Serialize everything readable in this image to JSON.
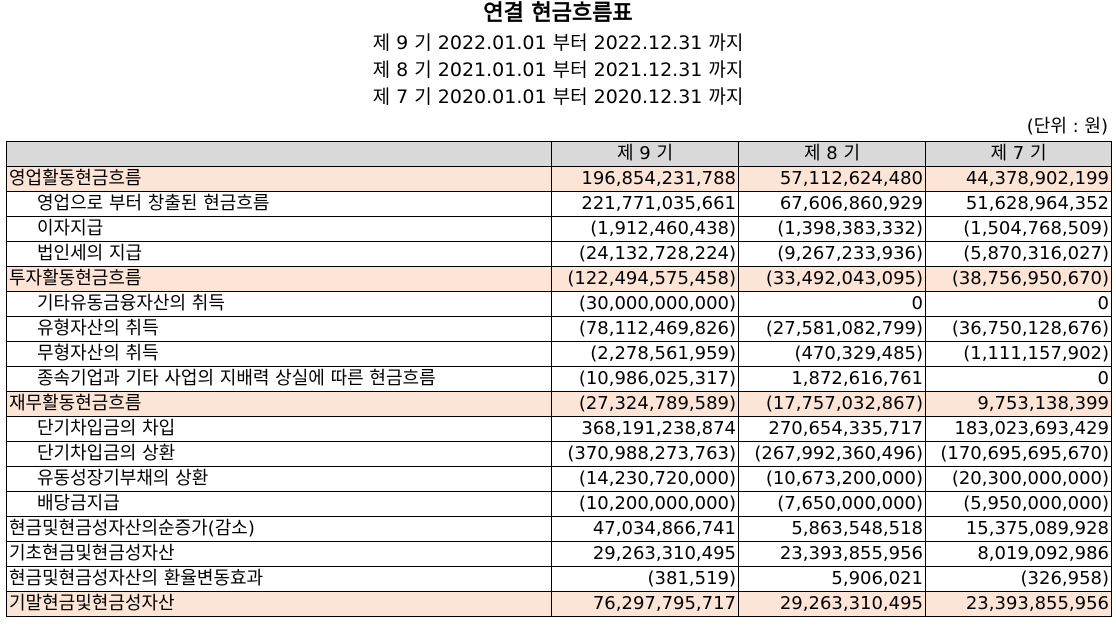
{
  "title": "연결 현금흐름표",
  "periods": [
    "제 9 기 2022.01.01 부터 2022.12.31 까지",
    "제 8 기 2021.01.01 부터 2021.12.31 까지",
    "제 7 기 2020.01.01 부터 2020.12.31 까지"
  ],
  "unit": "(단위 : 원)",
  "headers": [
    "",
    "제 9 기",
    "제 8 기",
    "제 7 기"
  ],
  "rows": [
    {
      "label": "영업활동현금흐름",
      "v9": "196,854,231,788",
      "v8": "57,112,624,480",
      "v7": "44,378,902,199"
    },
    {
      "label": "영업으로 부터 창출된 현금흐름",
      "v9": "221,771,035,661",
      "v8": "67,606,860,929",
      "v7": "51,628,964,352"
    },
    {
      "label": "이자지급",
      "v9": "(1,912,460,438)",
      "v8": "(1,398,383,332)",
      "v7": "(1,504,768,509)"
    },
    {
      "label": "법인세의 지급",
      "v9": "(24,132,728,224)",
      "v8": "(9,267,233,936)",
      "v7": "(5,870,316,027)"
    },
    {
      "label": "투자활동현금흐름",
      "v9": "(122,494,575,458)",
      "v8": "(33,492,043,095)",
      "v7": "(38,756,950,670)"
    },
    {
      "label": "기타유동금융자산의 취득",
      "v9": "(30,000,000,000)",
      "v8": "0",
      "v7": "0"
    },
    {
      "label": "유형자산의 취득",
      "v9": "(78,112,469,826)",
      "v8": "(27,581,082,799)",
      "v7": "(36,750,128,676)"
    },
    {
      "label": "무형자산의 취득",
      "v9": "(2,278,561,959)",
      "v8": "(470,329,485)",
      "v7": "(1,111,157,902)"
    },
    {
      "label": "종속기업과 기타 사업의 지배력 상실에 따른 현금흐름",
      "v9": "(10,986,025,317)",
      "v8": "1,872,616,761",
      "v7": "0"
    },
    {
      "label": "재무활동현금흐름",
      "v9": "(27,324,789,589)",
      "v8": "(17,757,032,867)",
      "v7": "9,753,138,399"
    },
    {
      "label": "단기차입금의 차입",
      "v9": "368,191,238,874",
      "v8": "270,654,335,717",
      "v7": "183,023,693,429"
    },
    {
      "label": "단기차입금의 상환",
      "v9": "(370,988,273,763)",
      "v8": "(267,992,360,496)",
      "v7": "(170,695,695,670)"
    },
    {
      "label": "유동성장기부채의 상환",
      "v9": "(14,230,720,000)",
      "v8": "(10,673,200,000)",
      "v7": "(20,300,000,000)"
    },
    {
      "label": "배당금지급",
      "v9": "(10,200,000,000)",
      "v8": "(7,650,000,000)",
      "v7": "(5,950,000,000)"
    },
    {
      "label": "현금및현금성자산의순증가(감소)",
      "v9": "47,034,866,741",
      "v8": "5,863,548,518",
      "v7": "15,375,089,928"
    },
    {
      "label": "기초현금및현금성자산",
      "v9": "29,263,310,495",
      "v8": "23,393,855,956",
      "v7": "8,019,092,986"
    },
    {
      "label": "현금및현금성자산의 환율변동효과",
      "v9": "(381,519)",
      "v8": "5,906,021",
      "v7": "(326,958)"
    },
    {
      "label": "기말현금및현금성자산",
      "v9": "76,297,795,717",
      "v8": "29,263,310,495",
      "v7": "23,393,855,956"
    }
  ]
}
